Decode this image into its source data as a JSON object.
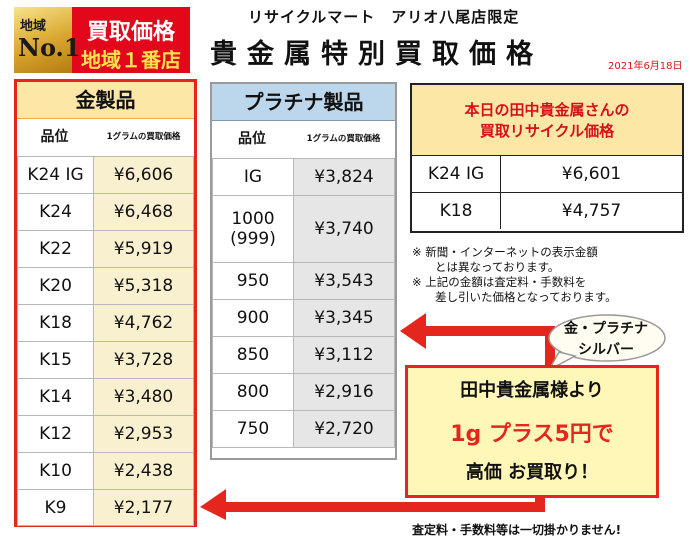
{
  "badge": {
    "area": "地域",
    "no1": "No.1",
    "line1": "買取価格",
    "line2": "地域１番店"
  },
  "store_name": "リサイクルマート　アリオ八尾店限定",
  "title": "貴金属特別買取価格",
  "date": "2021年6月18日",
  "gold": {
    "header": "金製品",
    "col_grade": "品位",
    "col_price": "1グラムの買取価格",
    "rows": [
      {
        "grade": "K24 IG",
        "price": "¥6,606"
      },
      {
        "grade": "K24",
        "price": "¥6,468"
      },
      {
        "grade": "K22",
        "price": "¥5,919"
      },
      {
        "grade": "K20",
        "price": "¥5,318"
      },
      {
        "grade": "K18",
        "price": "¥4,762"
      },
      {
        "grade": "K15",
        "price": "¥3,728"
      },
      {
        "grade": "K14",
        "price": "¥3,480"
      },
      {
        "grade": "K12",
        "price": "¥2,953"
      },
      {
        "grade": "K10",
        "price": "¥2,438"
      },
      {
        "grade": "K9",
        "price": "¥2,177"
      }
    ]
  },
  "platinum": {
    "header": "プラチナ製品",
    "col_grade": "品位",
    "col_price": "1グラムの買取価格",
    "rows": [
      {
        "grade": "IG",
        "price": "¥3,824"
      },
      {
        "grade": "1000\n(999)",
        "price": "¥3,740"
      },
      {
        "grade": "950",
        "price": "¥3,543"
      },
      {
        "grade": "900",
        "price": "¥3,345"
      },
      {
        "grade": "850",
        "price": "¥3,112"
      },
      {
        "grade": "800",
        "price": "¥2,916"
      },
      {
        "grade": "750",
        "price": "¥2,720"
      }
    ]
  },
  "today": {
    "line1": "本日の田中貴金属さんの",
    "line2": "買取リサイクル価格",
    "rows": [
      {
        "grade": "K24 IG",
        "price": "¥6,601"
      },
      {
        "grade": "K18",
        "price": "¥4,757"
      }
    ]
  },
  "notes": [
    "※ 新聞・インターネットの表示金額",
    "　　とは異なっております。",
    "※ 上記の金額は査定料・手数料を",
    "　　差し引いた価格となっております。"
  ],
  "bubble": {
    "line1": "金・プラチナ",
    "line2": "シルバー"
  },
  "promo": {
    "line1": "田中貴金属様より",
    "line2": "1g プラス5円で",
    "line3": "高価 お買取り！"
  },
  "footer": "査定料・手数料等は一切掛かりません!",
  "colors": {
    "accent_red": "#e5261f",
    "gold_bg": "#fde7a6",
    "platinum_bg": "#bcd6ec",
    "promo_bg": "#fff7b8"
  }
}
